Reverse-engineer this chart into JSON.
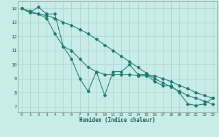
{
  "xlabel": "Humidex (Indice chaleur)",
  "background_color": "#c8ece8",
  "grid_color": "#b0d8d2",
  "line_color": "#1a7a6e",
  "x_ticks": [
    0,
    1,
    2,
    3,
    4,
    5,
    6,
    7,
    8,
    9,
    10,
    11,
    12,
    13,
    14,
    15,
    16,
    17,
    18,
    19,
    20,
    21,
    22,
    23
  ],
  "y_ticks": [
    7,
    8,
    9,
    10,
    11,
    12,
    13,
    14
  ],
  "xlim": [
    -0.5,
    23.5
  ],
  "ylim": [
    6.6,
    14.5
  ],
  "series": [
    [
      14.0,
      13.7,
      14.1,
      13.6,
      13.6,
      11.3,
      10.4,
      9.0,
      8.1,
      9.5,
      7.8,
      9.5,
      9.5,
      10.0,
      9.3,
      9.3,
      8.8,
      8.5,
      8.5,
      8.0,
      7.2,
      7.1,
      7.2,
      7.6
    ],
    [
      14.0,
      13.7,
      13.6,
      13.3,
      12.2,
      11.3,
      11.0,
      10.4,
      9.8,
      9.5,
      9.3,
      9.3,
      9.3,
      9.3,
      9.2,
      9.2,
      9.2,
      9.0,
      8.8,
      8.5,
      8.3,
      8.0,
      7.8,
      7.6
    ],
    [
      14.0,
      13.8,
      13.6,
      13.5,
      13.3,
      13.0,
      12.8,
      12.5,
      12.2,
      11.8,
      11.4,
      11.0,
      10.6,
      10.2,
      9.8,
      9.4,
      9.0,
      8.7,
      8.4,
      8.1,
      7.8,
      7.6,
      7.4,
      7.2
    ]
  ]
}
